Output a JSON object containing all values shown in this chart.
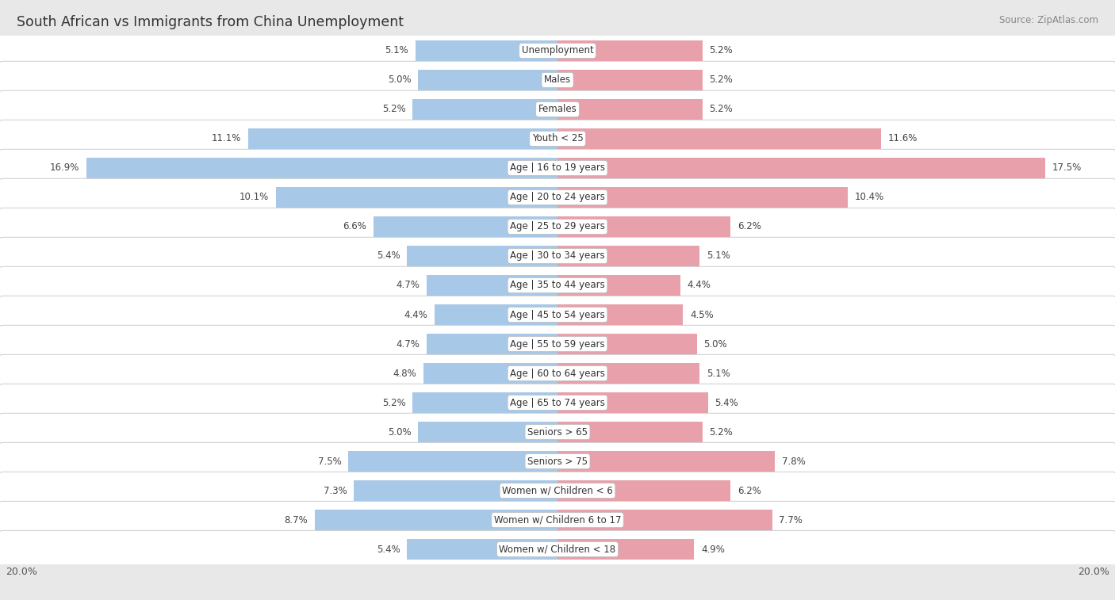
{
  "title": "South African vs Immigrants from China Unemployment",
  "source": "Source: ZipAtlas.com",
  "categories": [
    "Unemployment",
    "Males",
    "Females",
    "Youth < 25",
    "Age | 16 to 19 years",
    "Age | 20 to 24 years",
    "Age | 25 to 29 years",
    "Age | 30 to 34 years",
    "Age | 35 to 44 years",
    "Age | 45 to 54 years",
    "Age | 55 to 59 years",
    "Age | 60 to 64 years",
    "Age | 65 to 74 years",
    "Seniors > 65",
    "Seniors > 75",
    "Women w/ Children < 6",
    "Women w/ Children 6 to 17",
    "Women w/ Children < 18"
  ],
  "south_african": [
    5.1,
    5.0,
    5.2,
    11.1,
    16.9,
    10.1,
    6.6,
    5.4,
    4.7,
    4.4,
    4.7,
    4.8,
    5.2,
    5.0,
    7.5,
    7.3,
    8.7,
    5.4
  ],
  "immigrants_china": [
    5.2,
    5.2,
    5.2,
    11.6,
    17.5,
    10.4,
    6.2,
    5.1,
    4.4,
    4.5,
    5.0,
    5.1,
    5.4,
    5.2,
    7.8,
    6.2,
    7.7,
    4.9
  ],
  "blue_color": "#a8c8e8",
  "pink_color": "#e8a0aa",
  "bg_row": "#f2f2f2",
  "bg_main": "#e8e8e8",
  "max_val": 20.0,
  "legend_south_african": "South African",
  "legend_immigrants": "Immigrants from China",
  "bar_height": 0.72
}
